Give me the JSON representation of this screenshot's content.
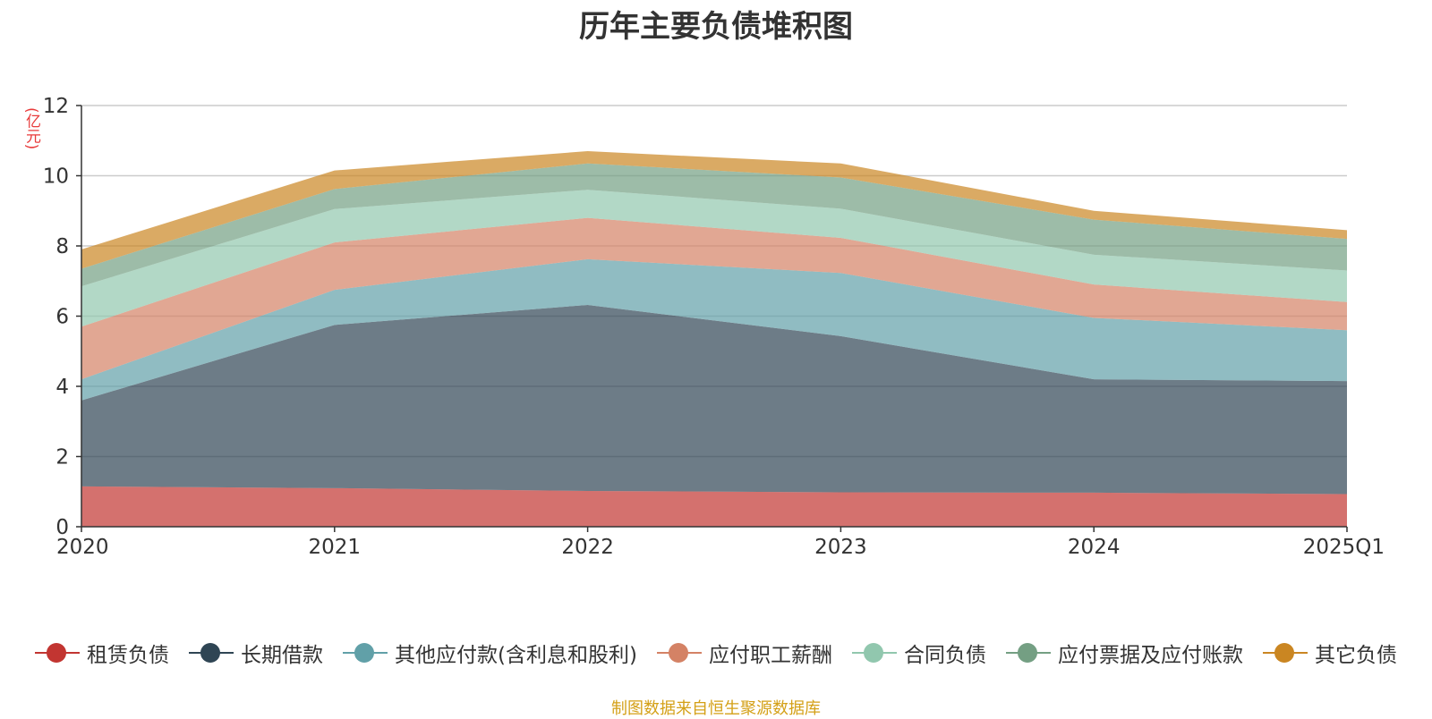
{
  "chart_data": {
    "type": "area",
    "stacked": true,
    "title": "历年主要负债堆积图",
    "unit_label": "(亿元)",
    "categories": [
      "2020",
      "2021",
      "2022",
      "2023",
      "2024",
      "2025Q1"
    ],
    "ylim": [
      0,
      12
    ],
    "yticks": [
      0,
      2,
      4,
      6,
      8,
      10,
      12
    ],
    "grid": true,
    "legend_position": "bottom",
    "series": [
      {
        "name": "租赁负债",
        "color": "#c23531",
        "values": [
          1.15,
          1.1,
          1.02,
          0.98,
          0.97,
          0.93
        ]
      },
      {
        "name": "长期借款",
        "color": "#2f4554",
        "values": [
          2.45,
          4.65,
          5.3,
          4.45,
          3.23,
          3.22
        ]
      },
      {
        "name": "其他应付款(含利息和股利)",
        "color": "#61a0a8",
        "values": [
          0.6,
          1.0,
          1.3,
          1.8,
          1.75,
          1.45
        ]
      },
      {
        "name": "应付职工薪酬",
        "color": "#d48265",
        "values": [
          1.5,
          1.35,
          1.18,
          1.0,
          0.95,
          0.8
        ]
      },
      {
        "name": "合同负债",
        "color": "#91c7ae",
        "values": [
          1.15,
          0.95,
          0.8,
          0.83,
          0.85,
          0.9
        ]
      },
      {
        "name": "应付票据及应付账款",
        "color": "#749f83",
        "values": [
          0.5,
          0.57,
          0.75,
          0.89,
          1.0,
          0.9
        ]
      },
      {
        "name": "其它负债",
        "color": "#ca8622",
        "values": [
          0.55,
          0.53,
          0.35,
          0.4,
          0.25,
          0.25
        ]
      }
    ]
  },
  "source_text": "制图数据来自恒生聚源数据库"
}
